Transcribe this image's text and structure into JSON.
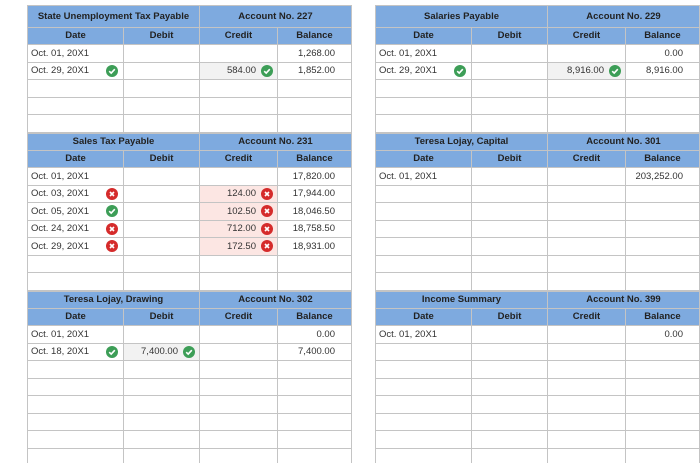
{
  "ledgers": [
    {
      "name": "State Unemployment Tax Payable",
      "account": "Account No. 227",
      "columns": [
        "Date",
        "Debit",
        "Credit",
        "Balance"
      ],
      "rows": [
        {
          "date": "Oct. 01, 20X1",
          "balance": "1,268.00"
        },
        {
          "date": "Oct. 29, 20X1",
          "date_status": "correct",
          "credit": "584.00",
          "credit_status": "correct",
          "balance": "1,852.00"
        }
      ]
    },
    {
      "name": "Salaries Payable",
      "account": "Account No. 229",
      "columns": [
        "Date",
        "Debit",
        "Credit",
        "Balance"
      ],
      "rows": [
        {
          "date": "Oct. 01, 20X1",
          "balance": "0.00"
        },
        {
          "date": "Oct. 29, 20X1",
          "date_status": "correct",
          "credit": "8,916.00",
          "credit_status": "correct",
          "balance": "8,916.00"
        }
      ]
    },
    {
      "name": "Sales Tax Payable",
      "account": "Account No. 231",
      "columns": [
        "Date",
        "Debit",
        "Credit",
        "Balance"
      ],
      "rows": [
        {
          "date": "Oct. 01, 20X1",
          "balance": "17,820.00"
        },
        {
          "date": "Oct. 03, 20X1",
          "date_status": "incorrect",
          "credit": "124.00",
          "credit_status": "incorrect",
          "balance": "17,944.00"
        },
        {
          "date": "Oct. 05, 20X1",
          "date_status": "correct",
          "credit": "102.50",
          "credit_status": "incorrect",
          "balance": "18,046.50"
        },
        {
          "date": "Oct. 24, 20X1",
          "date_status": "incorrect",
          "credit": "712.00",
          "credit_status": "incorrect",
          "balance": "18,758.50"
        },
        {
          "date": "Oct. 29, 20X1",
          "date_status": "incorrect",
          "credit": "172.50",
          "credit_status": "incorrect",
          "balance": "18,931.00"
        }
      ]
    },
    {
      "name": "Teresa Lojay, Capital",
      "account": "Account No. 301",
      "columns": [
        "Date",
        "Debit",
        "Credit",
        "Balance"
      ],
      "rows": [
        {
          "date": "Oct. 01, 20X1",
          "balance": "203,252.00"
        }
      ]
    },
    {
      "name": "Teresa Lojay, Drawing",
      "account": "Account No. 302",
      "columns": [
        "Date",
        "Debit",
        "Credit",
        "Balance"
      ],
      "rows": [
        {
          "date": "Oct. 01, 20X1",
          "balance": "0.00"
        },
        {
          "date": "Oct. 18, 20X1",
          "date_status": "correct",
          "debit": "7,400.00",
          "debit_status": "correct",
          "balance": "7,400.00"
        }
      ]
    },
    {
      "name": "Income Summary",
      "account": "Account No. 399",
      "columns": [
        "Date",
        "Debit",
        "Credit",
        "Balance"
      ],
      "rows": [
        {
          "date": "Oct. 01, 20X1",
          "balance": "0.00"
        }
      ]
    }
  ]
}
